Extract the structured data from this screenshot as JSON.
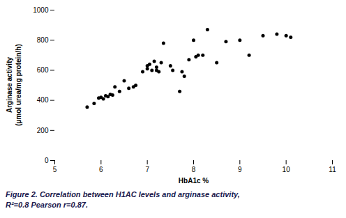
{
  "chart_data": {
    "type": "scatter",
    "x": [
      5.7,
      5.85,
      5.95,
      6.0,
      6.05,
      6.1,
      6.15,
      6.2,
      6.25,
      6.3,
      6.4,
      6.5,
      6.6,
      6.7,
      6.75,
      6.9,
      7.0,
      7.0,
      7.05,
      7.1,
      7.15,
      7.2,
      7.2,
      7.25,
      7.3,
      7.35,
      7.5,
      7.55,
      7.7,
      7.75,
      7.8,
      7.9,
      8.0,
      8.05,
      8.1,
      8.2,
      8.3,
      8.5,
      8.7,
      9.0,
      9.2,
      9.5,
      9.8,
      10.0,
      10.1
    ],
    "values": [
      355,
      380,
      415,
      420,
      410,
      430,
      425,
      440,
      435,
      490,
      460,
      530,
      480,
      490,
      500,
      590,
      610,
      630,
      640,
      600,
      660,
      620,
      600,
      590,
      650,
      780,
      630,
      600,
      460,
      590,
      560,
      670,
      800,
      690,
      700,
      700,
      870,
      650,
      790,
      800,
      700,
      830,
      840,
      830,
      820
    ],
    "color": "#000000",
    "xlabel": "HbA1c %",
    "ylabel": [
      "Arginase activity",
      "(µmol urea/mg protein/h)"
    ],
    "xlim": [
      5,
      11
    ],
    "ylim": [
      0,
      1000
    ],
    "xticks": [
      5,
      6,
      7,
      8,
      9,
      10,
      11
    ],
    "yticks": [
      0,
      200,
      400,
      600,
      800,
      1000
    ],
    "caption": [
      "Figure 2.  Correlation between H1AC levels and arginase activity,",
      "R²=0.8 Pearson r=0.87."
    ]
  }
}
